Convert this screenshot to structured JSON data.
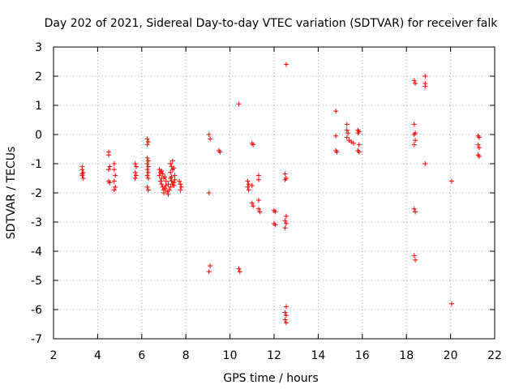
{
  "chart_data": {
    "type": "scatter",
    "title": "Day 202 of 2021, Sidereal Day-to-day VTEC variation (SDTVAR) for receiver falk",
    "xlabel": "GPS time / hours",
    "ylabel": "SDTVAR / TECUs",
    "xlim": [
      2,
      22
    ],
    "ylim": [
      -7,
      3
    ],
    "xticks": [
      2,
      4,
      6,
      8,
      10,
      12,
      14,
      16,
      18,
      20,
      22
    ],
    "yticks": [
      -7,
      -6,
      -5,
      -4,
      -3,
      -2,
      -1,
      0,
      1,
      2,
      3
    ],
    "grid": true,
    "marker": "plus",
    "color": "#ff0000",
    "series": [
      {
        "name": "SDTVAR",
        "points": [
          [
            3.3,
            -1.1
          ],
          [
            3.3,
            -1.2
          ],
          [
            3.35,
            -1.3
          ],
          [
            3.3,
            -1.4
          ],
          [
            3.35,
            -1.5
          ],
          [
            3.3,
            -1.35
          ],
          [
            4.5,
            -0.6
          ],
          [
            4.5,
            -0.7
          ],
          [
            4.5,
            -1.2
          ],
          [
            4.55,
            -1.1
          ],
          [
            4.5,
            -1.6
          ],
          [
            4.55,
            -1.65
          ],
          [
            4.75,
            -1.0
          ],
          [
            4.75,
            -1.2
          ],
          [
            4.8,
            -1.4
          ],
          [
            4.75,
            -1.6
          ],
          [
            4.8,
            -1.8
          ],
          [
            4.75,
            -1.9
          ],
          [
            5.7,
            -1.0
          ],
          [
            5.75,
            -1.1
          ],
          [
            5.7,
            -1.3
          ],
          [
            5.75,
            -1.4
          ],
          [
            5.7,
            -1.5
          ],
          [
            6.25,
            -0.15
          ],
          [
            6.3,
            -0.25
          ],
          [
            6.25,
            -0.35
          ],
          [
            6.25,
            -0.8
          ],
          [
            6.3,
            -0.9
          ],
          [
            6.25,
            -1.0
          ],
          [
            6.3,
            -1.1
          ],
          [
            6.25,
            -1.2
          ],
          [
            6.3,
            -1.3
          ],
          [
            6.25,
            -1.4
          ],
          [
            6.3,
            -1.5
          ],
          [
            6.25,
            -1.8
          ],
          [
            6.3,
            -1.9
          ],
          [
            6.8,
            -1.2
          ],
          [
            6.85,
            -1.3
          ],
          [
            6.8,
            -1.4
          ],
          [
            6.9,
            -1.5
          ],
          [
            6.85,
            -1.6
          ],
          [
            6.9,
            -1.7
          ],
          [
            6.95,
            -1.8
          ],
          [
            7.0,
            -1.9
          ],
          [
            7.0,
            -2.0
          ],
          [
            7.05,
            -1.85
          ],
          [
            7.1,
            -1.75
          ],
          [
            7.15,
            -1.95
          ],
          [
            7.2,
            -2.05
          ],
          [
            6.9,
            -1.25
          ],
          [
            7.0,
            -1.5
          ],
          [
            7.1,
            -1.6
          ],
          [
            6.95,
            -1.35
          ],
          [
            7.05,
            -1.45
          ],
          [
            7.2,
            -1.7
          ],
          [
            7.3,
            -1.0
          ],
          [
            7.35,
            -1.1
          ],
          [
            7.4,
            -1.2
          ],
          [
            7.3,
            -1.3
          ],
          [
            7.4,
            -0.9
          ],
          [
            7.45,
            -1.15
          ],
          [
            7.3,
            -1.5
          ],
          [
            7.35,
            -1.6
          ],
          [
            7.4,
            -1.7
          ],
          [
            7.5,
            -1.55
          ],
          [
            7.45,
            -1.65
          ],
          [
            7.3,
            -1.8
          ],
          [
            7.5,
            -1.4
          ],
          [
            7.45,
            -1.75
          ],
          [
            7.35,
            -1.45
          ],
          [
            7.25,
            -1.9
          ],
          [
            7.75,
            -1.7
          ],
          [
            7.8,
            -1.8
          ],
          [
            7.75,
            -1.9
          ],
          [
            7.7,
            -1.6
          ],
          [
            9.05,
            -0.0
          ],
          [
            9.1,
            -0.15
          ],
          [
            9.05,
            -2.0
          ],
          [
            9.1,
            -4.5
          ],
          [
            9.05,
            -4.7
          ],
          [
            9.5,
            -0.55
          ],
          [
            9.55,
            -0.6
          ],
          [
            10.4,
            1.05
          ],
          [
            10.4,
            -4.6
          ],
          [
            10.45,
            -4.7
          ],
          [
            10.8,
            -1.6
          ],
          [
            10.85,
            -1.7
          ],
          [
            10.8,
            -1.8
          ],
          [
            10.85,
            -1.9
          ],
          [
            11.0,
            -0.3
          ],
          [
            11.05,
            -0.35
          ],
          [
            11.0,
            -1.75
          ],
          [
            11.0,
            -2.35
          ],
          [
            11.05,
            -2.45
          ],
          [
            11.3,
            -1.4
          ],
          [
            11.3,
            -1.55
          ],
          [
            11.3,
            -2.25
          ],
          [
            11.3,
            -2.55
          ],
          [
            11.35,
            -2.65
          ],
          [
            12.0,
            -2.6
          ],
          [
            12.05,
            -2.65
          ],
          [
            12.0,
            -3.05
          ],
          [
            12.05,
            -3.1
          ],
          [
            12.55,
            2.4
          ],
          [
            12.5,
            -1.35
          ],
          [
            12.55,
            -1.5
          ],
          [
            12.5,
            -1.55
          ],
          [
            12.55,
            -2.8
          ],
          [
            12.5,
            -2.95
          ],
          [
            12.55,
            -3.05
          ],
          [
            12.5,
            -3.2
          ],
          [
            12.55,
            -5.9
          ],
          [
            12.5,
            -6.1
          ],
          [
            12.55,
            -6.2
          ],
          [
            12.5,
            -6.35
          ],
          [
            12.55,
            -6.45
          ],
          [
            14.8,
            0.8
          ],
          [
            14.8,
            -0.05
          ],
          [
            14.8,
            -0.55
          ],
          [
            14.85,
            -0.6
          ],
          [
            15.3,
            0.35
          ],
          [
            15.3,
            0.15
          ],
          [
            15.35,
            0.05
          ],
          [
            15.3,
            -0.1
          ],
          [
            15.4,
            -0.2
          ],
          [
            15.5,
            -0.25
          ],
          [
            15.6,
            -0.3
          ],
          [
            15.8,
            0.15
          ],
          [
            15.85,
            0.1
          ],
          [
            15.8,
            0.05
          ],
          [
            15.85,
            -0.35
          ],
          [
            15.8,
            -0.55
          ],
          [
            15.85,
            -0.6
          ],
          [
            18.35,
            1.85
          ],
          [
            18.4,
            1.75
          ],
          [
            18.35,
            0.35
          ],
          [
            18.4,
            0.05
          ],
          [
            18.35,
            0.0
          ],
          [
            18.4,
            -0.2
          ],
          [
            18.35,
            -0.35
          ],
          [
            18.35,
            -2.55
          ],
          [
            18.4,
            -2.65
          ],
          [
            18.35,
            -4.15
          ],
          [
            18.4,
            -4.3
          ],
          [
            18.85,
            2.0
          ],
          [
            18.85,
            1.75
          ],
          [
            18.85,
            1.65
          ],
          [
            18.85,
            -1.0
          ],
          [
            20.05,
            -1.6
          ],
          [
            20.05,
            -5.8
          ],
          [
            21.25,
            -0.05
          ],
          [
            21.3,
            -0.1
          ],
          [
            21.25,
            -0.35
          ],
          [
            21.3,
            -0.45
          ],
          [
            21.25,
            -0.7
          ],
          [
            21.3,
            -0.75
          ]
        ]
      }
    ]
  }
}
